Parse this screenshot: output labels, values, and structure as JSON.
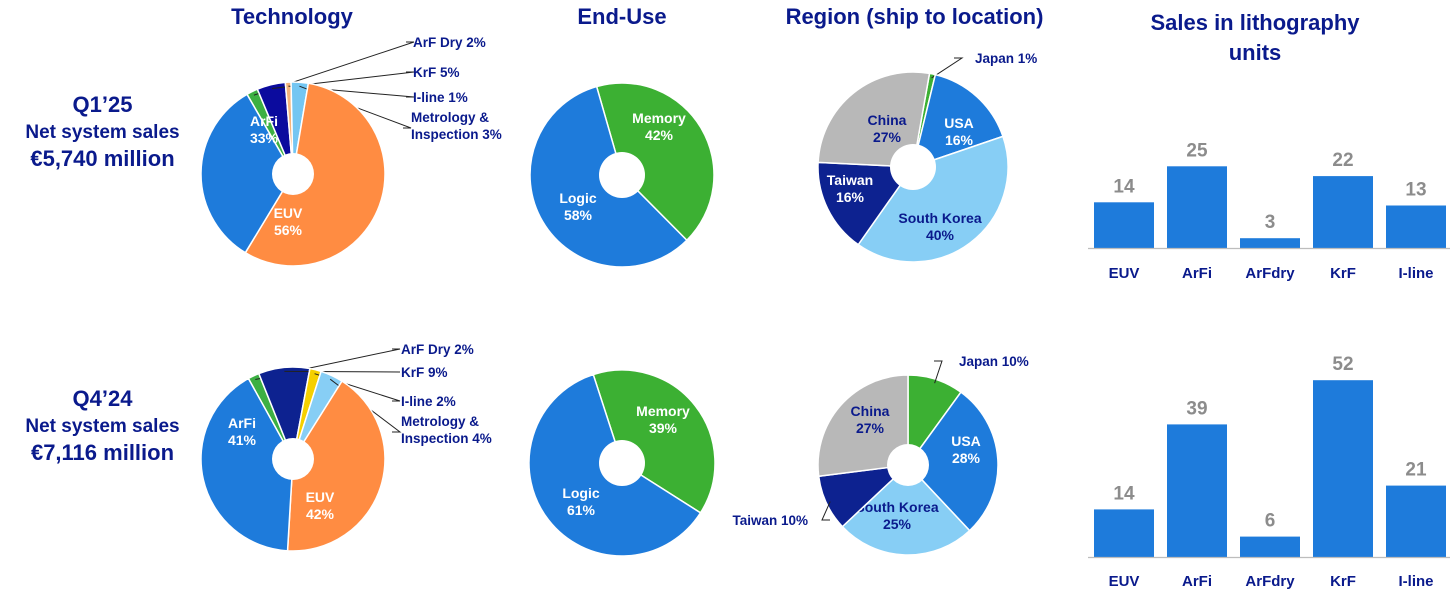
{
  "headers": {
    "technology": "Technology",
    "end_use": "End-Use",
    "region": "Region (ship to location)",
    "litho": "Sales in lithography units"
  },
  "quarters": [
    {
      "quarter": "Q1’25",
      "net_label": "Net system sales",
      "amount": "€5,740 million"
    },
    {
      "quarter": "Q4’24",
      "net_label": "Net system sales",
      "amount": "€7,116 million"
    }
  ],
  "chart_data": [
    {
      "type": "pie",
      "group": "Technology",
      "quarter": "Q1’25",
      "slices": [
        {
          "label": "ArF Dry",
          "value": 2,
          "color": "#3cb043"
        },
        {
          "label": "KrF",
          "value": 5,
          "color": "#0b0b9e"
        },
        {
          "label": "I-line",
          "value": 1,
          "color": "#f5b47a"
        },
        {
          "label": "Metrology & Inspection",
          "value": 3,
          "color": "#74c6f2"
        },
        {
          "label": "EUV",
          "value": 56,
          "color": "#ff8c42"
        },
        {
          "label": "ArFi",
          "value": 33,
          "color": "#1e7bdb"
        }
      ]
    },
    {
      "type": "pie",
      "group": "End-Use",
      "quarter": "Q1’25",
      "slices": [
        {
          "label": "Memory",
          "value": 42,
          "color": "#3cb033"
        },
        {
          "label": "Logic",
          "value": 58,
          "color": "#1e7bdb"
        }
      ]
    },
    {
      "type": "pie",
      "group": "Region (ship to location)",
      "quarter": "Q1’25",
      "slices": [
        {
          "label": "Japan",
          "value": 1,
          "color": "#3cb033"
        },
        {
          "label": "USA",
          "value": 16,
          "color": "#1e7bdb"
        },
        {
          "label": "South Korea",
          "value": 40,
          "color": "#87cef5"
        },
        {
          "label": "Taiwan",
          "value": 16,
          "color": "#0d2290"
        },
        {
          "label": "China",
          "value": 27,
          "color": "#b8b8b8"
        }
      ]
    },
    {
      "type": "bar",
      "group": "Sales in lithography units",
      "quarter": "Q1’25",
      "categories": [
        "EUV",
        "ArFi",
        "ArFdry",
        "KrF",
        "I-line"
      ],
      "values": [
        14,
        25,
        3,
        22,
        13
      ]
    },
    {
      "type": "pie",
      "group": "Technology",
      "quarter": "Q4’24",
      "slices": [
        {
          "label": "ArF Dry",
          "value": 2,
          "color": "#3cb043"
        },
        {
          "label": "KrF",
          "value": 9,
          "color": "#0d2290"
        },
        {
          "label": "I-line",
          "value": 2,
          "color": "#f5d000"
        },
        {
          "label": "Metrology & Inspection",
          "value": 4,
          "color": "#87cef5"
        },
        {
          "label": "EUV",
          "value": 42,
          "color": "#ff8c42"
        },
        {
          "label": "ArFi",
          "value": 41,
          "color": "#1e7bdb"
        }
      ]
    },
    {
      "type": "pie",
      "group": "End-Use",
      "quarter": "Q4’24",
      "slices": [
        {
          "label": "Memory",
          "value": 39,
          "color": "#3cb033"
        },
        {
          "label": "Logic",
          "value": 61,
          "color": "#1e7bdb"
        }
      ]
    },
    {
      "type": "pie",
      "group": "Region (ship to location)",
      "quarter": "Q4’24",
      "slices": [
        {
          "label": "Japan",
          "value": 10,
          "color": "#3cb033"
        },
        {
          "label": "USA",
          "value": 28,
          "color": "#1e7bdb"
        },
        {
          "label": "South Korea",
          "value": 25,
          "color": "#87cef5"
        },
        {
          "label": "Taiwan",
          "value": 10,
          "color": "#0d2290"
        },
        {
          "label": "China",
          "value": 27,
          "color": "#b8b8b8"
        }
      ]
    },
    {
      "type": "bar",
      "group": "Sales in lithography units",
      "quarter": "Q4’24",
      "categories": [
        "EUV",
        "ArFi",
        "ArFdry",
        "KrF",
        "I-line"
      ],
      "values": [
        14,
        39,
        6,
        52,
        21
      ]
    }
  ],
  "colors": {
    "title": "#0a1a8c",
    "bar": "#1e7bdb",
    "bar_value": "#8c8c8c",
    "inside_label_dark": "#0a1a8c"
  }
}
